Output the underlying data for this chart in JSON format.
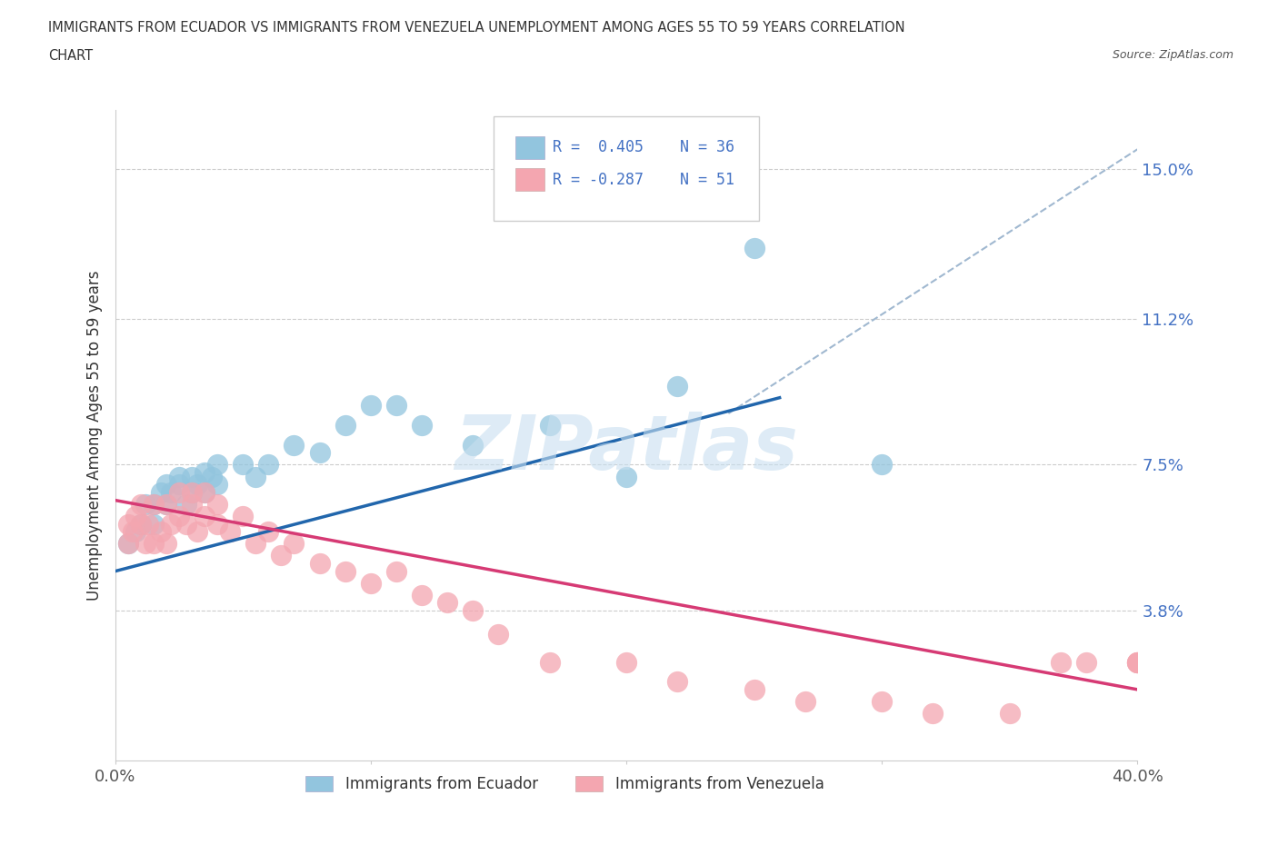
{
  "title_line1": "IMMIGRANTS FROM ECUADOR VS IMMIGRANTS FROM VENEZUELA UNEMPLOYMENT AMONG AGES 55 TO 59 YEARS CORRELATION",
  "title_line2": "CHART",
  "source": "Source: ZipAtlas.com",
  "ylabel": "Unemployment Among Ages 55 to 59 years",
  "xlim": [
    0.0,
    0.4
  ],
  "ylim": [
    0.0,
    0.165
  ],
  "ytick_vals": [
    0.038,
    0.075,
    0.112,
    0.15
  ],
  "ytick_labels": [
    "3.8%",
    "7.5%",
    "11.2%",
    "15.0%"
  ],
  "xtick_vals": [
    0.0,
    0.1,
    0.2,
    0.3,
    0.4
  ],
  "xtick_labels": [
    "0.0%",
    "",
    "",
    "",
    "40.0%"
  ],
  "ecuador_color": "#92c5de",
  "venezuela_color": "#f4a6b0",
  "ecuador_line_color": "#2166ac",
  "venezuela_line_color": "#d63a74",
  "gray_dash_color": "#a0b8d0",
  "watermark_color": "#c8dff0",
  "legend_text_color": "#4472c4",
  "ecuador_label": "Immigrants from Ecuador",
  "venezuela_label": "Immigrants from Venezuela",
  "legend_r_ecuador": "R =  0.405",
  "legend_n_ecuador": "N = 36",
  "legend_r_venezuela": "R = -0.287",
  "legend_n_venezuela": "N = 51",
  "watermark": "ZIPatlas",
  "ec_x": [
    0.005,
    0.008,
    0.01,
    0.012,
    0.015,
    0.015,
    0.018,
    0.02,
    0.02,
    0.022,
    0.025,
    0.025,
    0.028,
    0.03,
    0.03,
    0.032,
    0.035,
    0.035,
    0.038,
    0.04,
    0.04,
    0.05,
    0.055,
    0.06,
    0.07,
    0.08,
    0.09,
    0.1,
    0.11,
    0.12,
    0.14,
    0.17,
    0.2,
    0.22,
    0.25,
    0.3
  ],
  "ec_y": [
    0.055,
    0.058,
    0.06,
    0.065,
    0.06,
    0.065,
    0.068,
    0.065,
    0.07,
    0.068,
    0.07,
    0.072,
    0.065,
    0.068,
    0.072,
    0.07,
    0.068,
    0.073,
    0.072,
    0.07,
    0.075,
    0.075,
    0.072,
    0.075,
    0.08,
    0.078,
    0.085,
    0.09,
    0.09,
    0.085,
    0.08,
    0.085,
    0.072,
    0.095,
    0.13,
    0.075
  ],
  "ve_x": [
    0.005,
    0.005,
    0.007,
    0.008,
    0.01,
    0.01,
    0.012,
    0.013,
    0.015,
    0.015,
    0.018,
    0.02,
    0.02,
    0.022,
    0.025,
    0.025,
    0.028,
    0.03,
    0.03,
    0.032,
    0.035,
    0.035,
    0.04,
    0.04,
    0.045,
    0.05,
    0.055,
    0.06,
    0.065,
    0.07,
    0.08,
    0.09,
    0.1,
    0.11,
    0.12,
    0.13,
    0.14,
    0.15,
    0.17,
    0.2,
    0.22,
    0.25,
    0.27,
    0.3,
    0.32,
    0.35,
    0.37,
    0.38,
    0.4,
    0.4,
    0.4
  ],
  "ve_y": [
    0.055,
    0.06,
    0.058,
    0.062,
    0.06,
    0.065,
    0.055,
    0.06,
    0.055,
    0.065,
    0.058,
    0.055,
    0.065,
    0.06,
    0.062,
    0.068,
    0.06,
    0.065,
    0.068,
    0.058,
    0.062,
    0.068,
    0.06,
    0.065,
    0.058,
    0.062,
    0.055,
    0.058,
    0.052,
    0.055,
    0.05,
    0.048,
    0.045,
    0.048,
    0.042,
    0.04,
    0.038,
    0.032,
    0.025,
    0.025,
    0.02,
    0.018,
    0.015,
    0.015,
    0.012,
    0.012,
    0.025,
    0.025,
    0.025,
    0.025,
    0.025
  ],
  "ec_trend_x0": 0.0,
  "ec_trend_y0": 0.048,
  "ec_trend_x1": 0.26,
  "ec_trend_y1": 0.092,
  "dash_trend_x0": 0.24,
  "dash_trend_y0": 0.088,
  "dash_trend_x1": 0.4,
  "dash_trend_y1": 0.155,
  "ve_trend_x0": 0.0,
  "ve_trend_y0": 0.066,
  "ve_trend_x1": 0.4,
  "ve_trend_y1": 0.018
}
